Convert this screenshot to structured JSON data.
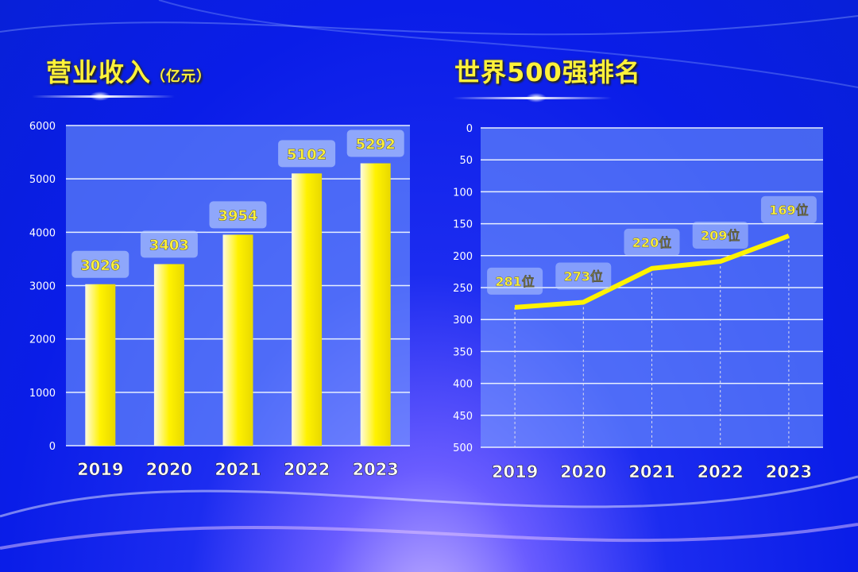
{
  "left_title": "营业收入",
  "left_unit": "（亿元）",
  "right_title": "世界500强排名",
  "chart_data": [
    {
      "type": "bar",
      "title": "营业收入（亿元）",
      "categories": [
        "2019",
        "2020",
        "2021",
        "2022",
        "2023"
      ],
      "values": [
        3026,
        3403,
        3954,
        5102,
        5292
      ],
      "data_labels": [
        "3026",
        "3403",
        "3954",
        "5102",
        "5292"
      ],
      "ylim": [
        0,
        6000
      ],
      "yticks": [
        "0",
        "1000",
        "2000",
        "3000",
        "4000",
        "5000",
        "6000"
      ],
      "grid": true,
      "bar_color": "#fff200"
    },
    {
      "type": "line",
      "title": "世界500强排名",
      "categories": [
        "2019",
        "2020",
        "2021",
        "2022",
        "2023"
      ],
      "values": [
        281,
        273,
        220,
        209,
        169
      ],
      "data_labels": [
        "281位",
        "273位",
        "220位",
        "209位",
        "169位"
      ],
      "ylim": [
        500,
        0
      ],
      "y_reversed": true,
      "yticks": [
        "0",
        "50",
        "100",
        "150",
        "200",
        "250",
        "300",
        "350",
        "400",
        "450",
        "500"
      ],
      "grid": true,
      "line_color": "#fff200"
    }
  ]
}
